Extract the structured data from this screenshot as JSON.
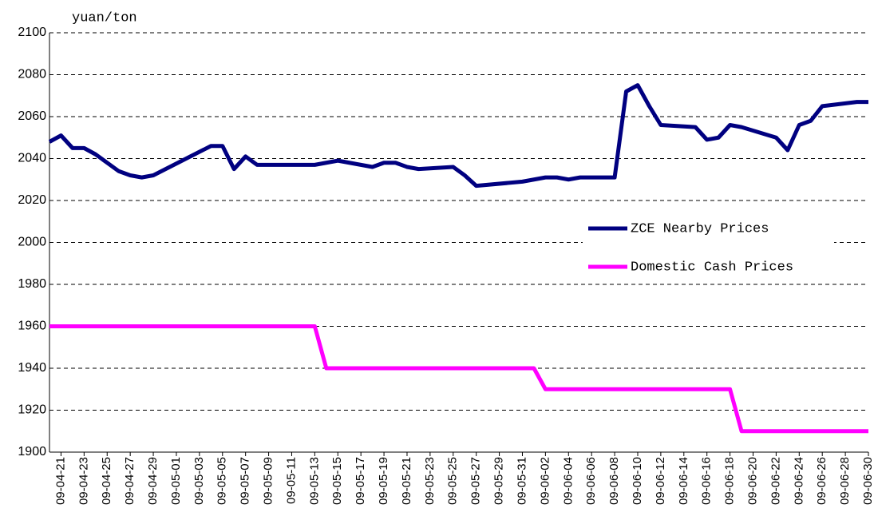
{
  "chart_data": {
    "type": "line",
    "y_label": "yuan/ton",
    "ylim": [
      1900,
      2100
    ],
    "yticks": [
      1900,
      1920,
      1940,
      1960,
      1980,
      2000,
      2020,
      2040,
      2060,
      2080,
      2100
    ],
    "xlim": [
      "09-04-20",
      "09-06-30"
    ],
    "xticks": [
      "09-04-21",
      "09-04-23",
      "09-04-25",
      "09-04-27",
      "09-04-29",
      "09-05-01",
      "09-05-03",
      "09-05-05",
      "09-05-07",
      "09-05-09",
      "09-05-11",
      "09-05-13",
      "09-05-15",
      "09-05-17",
      "09-05-19",
      "09-05-21",
      "09-05-23",
      "09-05-25",
      "09-05-27",
      "09-05-29",
      "09-05-31",
      "09-06-02",
      "09-06-04",
      "09-06-06",
      "09-06-08",
      "09-06-10",
      "09-06-12",
      "09-06-14",
      "09-06-16",
      "09-06-18",
      "09-06-20",
      "09-06-22",
      "09-06-24",
      "09-06-26",
      "09-06-28",
      "09-06-30"
    ],
    "grid": true,
    "legend": "right",
    "series": [
      {
        "name": "ZCE Nearby Prices",
        "color": "#000080",
        "x": [
          "09-04-20",
          "09-04-21",
          "09-04-22",
          "09-04-23",
          "09-04-24",
          "09-04-25",
          "09-04-26",
          "09-04-27",
          "09-04-28",
          "09-04-29",
          "09-05-04",
          "09-05-05",
          "09-05-06",
          "09-05-07",
          "09-05-08",
          "09-05-09",
          "09-05-13",
          "09-05-15",
          "09-05-18",
          "09-05-19",
          "09-05-20",
          "09-05-21",
          "09-05-22",
          "09-05-25",
          "09-05-26",
          "09-05-27",
          "09-05-31",
          "09-06-02",
          "09-06-03",
          "09-06-04",
          "09-06-05",
          "09-06-08",
          "09-06-09",
          "09-06-10",
          "09-06-11",
          "09-06-12",
          "09-06-15",
          "09-06-16",
          "09-06-17",
          "09-06-18",
          "09-06-19",
          "09-06-22",
          "09-06-23",
          "09-06-24",
          "09-06-25",
          "09-06-26",
          "09-06-29",
          "09-06-30"
        ],
        "values": [
          2048,
          2051,
          2045,
          2045,
          2042,
          2038,
          2034,
          2032,
          2031,
          2032,
          2046,
          2046,
          2035,
          2041,
          2037,
          2037,
          2037,
          2039,
          2036,
          2038,
          2038,
          2036,
          2035,
          2036,
          2032,
          2027,
          2029,
          2031,
          2031,
          2030,
          2031,
          2031,
          2072,
          2075,
          2065,
          2056,
          2055,
          2049,
          2050,
          2056,
          2055,
          2050,
          2044,
          2056,
          2058,
          2065,
          2067,
          2067
        ]
      },
      {
        "name": "Domestic Cash Prices",
        "color": "#ff00ff",
        "x": [
          "09-04-20",
          "09-05-13",
          "09-05-14",
          "09-06-01",
          "09-06-02",
          "09-06-18",
          "09-06-19",
          "09-06-30"
        ],
        "values": [
          1960,
          1960,
          1940,
          1940,
          1930,
          1930,
          1910,
          1910
        ]
      }
    ]
  }
}
